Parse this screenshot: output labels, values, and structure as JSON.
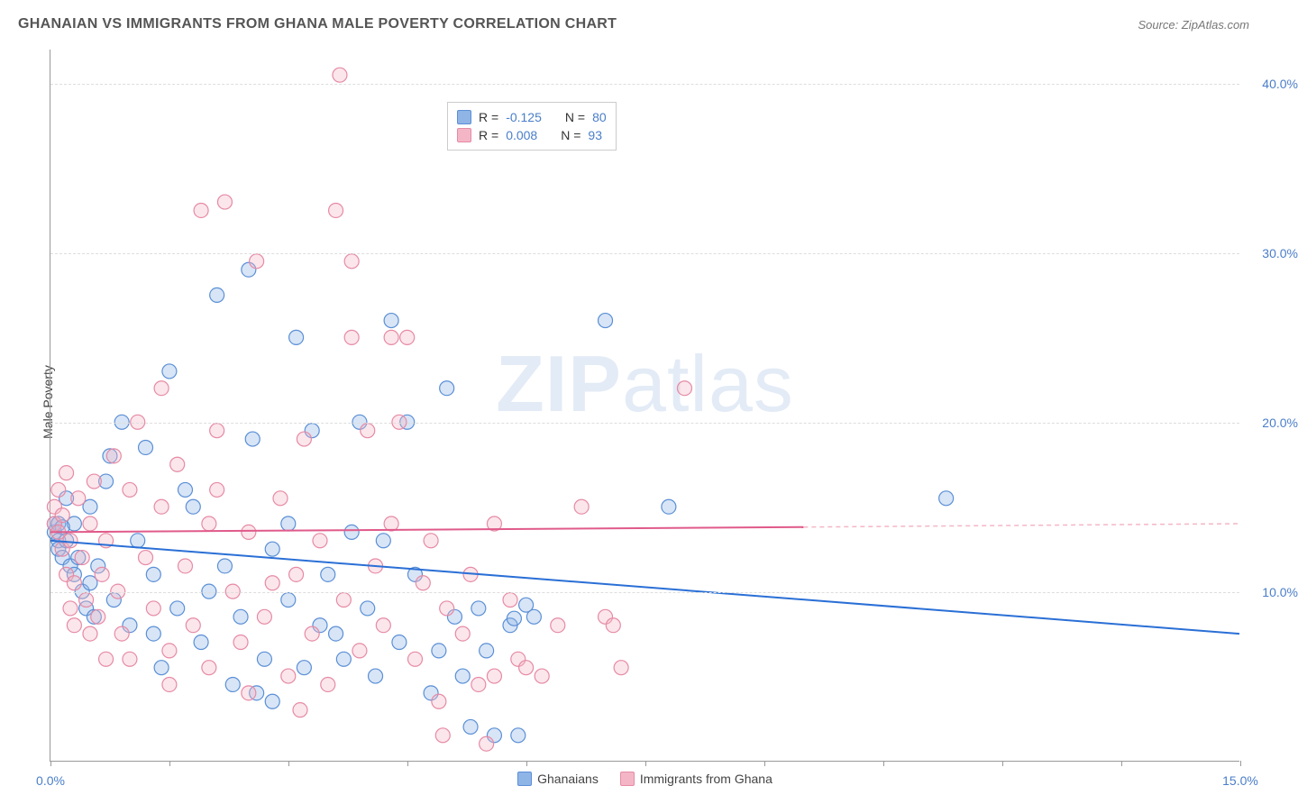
{
  "title": "GHANAIAN VS IMMIGRANTS FROM GHANA MALE POVERTY CORRELATION CHART",
  "source": "Source: ZipAtlas.com",
  "watermark_parts": {
    "a": "ZIP",
    "b": "atlas"
  },
  "y_axis_title": "Male Poverty",
  "chart": {
    "type": "scatter",
    "xlim": [
      0,
      15
    ],
    "ylim": [
      0,
      42
    ],
    "x_ticks": [
      0,
      1.5,
      3,
      4.5,
      6,
      7.5,
      9,
      10.5,
      12,
      13.5,
      15
    ],
    "x_tick_labels_shown": {
      "0": "0.0%",
      "15": "15.0%"
    },
    "y_ticks": [
      10,
      20,
      30,
      40
    ],
    "y_tick_labels": [
      "10.0%",
      "20.0%",
      "30.0%",
      "40.0%"
    ],
    "grid_color": "#dddddd",
    "background_color": "#ffffff",
    "border_color": "#999999",
    "marker_radius": 8,
    "marker_stroke_width": 1.2,
    "marker_fill_opacity": 0.35,
    "series": [
      {
        "name": "Ghanaians",
        "color_fill": "#8fb4e6",
        "color_stroke": "#5a8fd6",
        "legend_swatch": "#8fb4e6",
        "correlation_R": "-0.125",
        "correlation_N": "80",
        "trend_line": {
          "x1": 0,
          "y1": 13.0,
          "x2": 15,
          "y2": 7.5,
          "color": "#2a6fd6",
          "width": 2
        },
        "points": [
          [
            0.05,
            13.5
          ],
          [
            0.05,
            14.0
          ],
          [
            0.1,
            13.0
          ],
          [
            0.1,
            14.0
          ],
          [
            0.1,
            12.5
          ],
          [
            0.15,
            12.0
          ],
          [
            0.2,
            13.0
          ],
          [
            0.2,
            15.5
          ],
          [
            0.25,
            11.5
          ],
          [
            0.3,
            11.0
          ],
          [
            0.3,
            14.0
          ],
          [
            0.35,
            12.0
          ],
          [
            0.4,
            10.0
          ],
          [
            0.45,
            9.0
          ],
          [
            0.5,
            15.0
          ],
          [
            0.5,
            10.5
          ],
          [
            0.55,
            8.5
          ],
          [
            0.6,
            11.5
          ],
          [
            0.7,
            16.5
          ],
          [
            0.75,
            18.0
          ],
          [
            0.8,
            9.5
          ],
          [
            0.9,
            20.0
          ],
          [
            1.0,
            8.0
          ],
          [
            1.1,
            13.0
          ],
          [
            1.2,
            18.5
          ],
          [
            1.3,
            11.0
          ],
          [
            1.3,
            7.5
          ],
          [
            1.5,
            23.0
          ],
          [
            1.6,
            9.0
          ],
          [
            1.7,
            16.0
          ],
          [
            1.8,
            15.0
          ],
          [
            1.9,
            7.0
          ],
          [
            2.0,
            10.0
          ],
          [
            2.1,
            27.5
          ],
          [
            2.2,
            11.5
          ],
          [
            2.3,
            4.5
          ],
          [
            2.4,
            8.5
          ],
          [
            2.5,
            29.0
          ],
          [
            2.55,
            19.0
          ],
          [
            2.7,
            6.0
          ],
          [
            2.8,
            12.5
          ],
          [
            2.8,
            3.5
          ],
          [
            3.0,
            14.0
          ],
          [
            3.0,
            9.5
          ],
          [
            3.1,
            25.0
          ],
          [
            3.2,
            5.5
          ],
          [
            3.3,
            19.5
          ],
          [
            3.4,
            8.0
          ],
          [
            3.5,
            11.0
          ],
          [
            3.6,
            7.5
          ],
          [
            3.8,
            13.5
          ],
          [
            3.9,
            20.0
          ],
          [
            4.0,
            9.0
          ],
          [
            4.1,
            5.0
          ],
          [
            4.2,
            13.0
          ],
          [
            4.3,
            26.0
          ],
          [
            4.4,
            7.0
          ],
          [
            4.5,
            20.0
          ],
          [
            4.6,
            11.0
          ],
          [
            4.8,
            4.0
          ],
          [
            5.0,
            22.0
          ],
          [
            5.1,
            8.5
          ],
          [
            5.3,
            2.0
          ],
          [
            5.4,
            9.0
          ],
          [
            5.5,
            6.5
          ],
          [
            5.6,
            1.5
          ],
          [
            5.8,
            8.0
          ],
          [
            5.85,
            8.4
          ],
          [
            5.9,
            1.5
          ],
          [
            6.0,
            9.2
          ],
          [
            6.1,
            8.5
          ],
          [
            7.0,
            26.0
          ],
          [
            7.8,
            15.0
          ],
          [
            11.3,
            15.5
          ],
          [
            5.2,
            5.0
          ],
          [
            4.9,
            6.5
          ],
          [
            3.7,
            6.0
          ],
          [
            2.6,
            4.0
          ],
          [
            1.4,
            5.5
          ],
          [
            0.15,
            13.8
          ]
        ]
      },
      {
        "name": "Immigrants from Ghana",
        "color_fill": "#f4b6c6",
        "color_stroke": "#e68aa5",
        "legend_swatch": "#f4b6c6",
        "correlation_R": "0.008",
        "correlation_N": "93",
        "trend_line_solid": {
          "x1": 0,
          "y1": 13.5,
          "x2": 9.5,
          "y2": 13.8,
          "color": "#e05a8a",
          "width": 2
        },
        "trend_line_dashed": {
          "x1": 9.5,
          "y1": 13.8,
          "x2": 15,
          "y2": 14.0,
          "color": "#f4b6c6",
          "width": 1.5,
          "dash": "5,4"
        },
        "points": [
          [
            0.05,
            14.0
          ],
          [
            0.05,
            15.0
          ],
          [
            0.1,
            13.5
          ],
          [
            0.1,
            16.0
          ],
          [
            0.15,
            12.5
          ],
          [
            0.15,
            14.5
          ],
          [
            0.2,
            11.0
          ],
          [
            0.2,
            17.0
          ],
          [
            0.25,
            13.0
          ],
          [
            0.3,
            10.5
          ],
          [
            0.35,
            15.5
          ],
          [
            0.4,
            12.0
          ],
          [
            0.45,
            9.5
          ],
          [
            0.5,
            14.0
          ],
          [
            0.55,
            16.5
          ],
          [
            0.6,
            8.5
          ],
          [
            0.65,
            11.0
          ],
          [
            0.7,
            13.0
          ],
          [
            0.8,
            18.0
          ],
          [
            0.85,
            10.0
          ],
          [
            0.9,
            7.5
          ],
          [
            1.0,
            16.0
          ],
          [
            1.1,
            20.0
          ],
          [
            1.2,
            12.0
          ],
          [
            1.3,
            9.0
          ],
          [
            1.4,
            15.0
          ],
          [
            1.4,
            22.0
          ],
          [
            1.5,
            6.5
          ],
          [
            1.6,
            17.5
          ],
          [
            1.7,
            11.5
          ],
          [
            1.8,
            8.0
          ],
          [
            1.9,
            32.5
          ],
          [
            2.0,
            14.0
          ],
          [
            2.0,
            5.5
          ],
          [
            2.1,
            16.0
          ],
          [
            2.1,
            19.5
          ],
          [
            2.2,
            33.0
          ],
          [
            2.3,
            10.0
          ],
          [
            2.4,
            7.0
          ],
          [
            2.5,
            13.5
          ],
          [
            2.6,
            29.5
          ],
          [
            2.7,
            8.5
          ],
          [
            2.8,
            10.5
          ],
          [
            2.9,
            15.5
          ],
          [
            3.0,
            5.0
          ],
          [
            3.1,
            11.0
          ],
          [
            3.2,
            19.0
          ],
          [
            3.3,
            7.5
          ],
          [
            3.4,
            13.0
          ],
          [
            3.5,
            4.5
          ],
          [
            3.6,
            32.5
          ],
          [
            3.65,
            40.5
          ],
          [
            3.7,
            9.5
          ],
          [
            3.8,
            25.0
          ],
          [
            3.8,
            29.5
          ],
          [
            3.9,
            6.5
          ],
          [
            4.0,
            19.5
          ],
          [
            4.1,
            11.5
          ],
          [
            4.2,
            8.0
          ],
          [
            4.3,
            14.0
          ],
          [
            4.3,
            25.0
          ],
          [
            4.4,
            20.0
          ],
          [
            4.5,
            25.0
          ],
          [
            4.6,
            6.0
          ],
          [
            4.7,
            10.5
          ],
          [
            4.8,
            13.0
          ],
          [
            4.9,
            3.5
          ],
          [
            5.0,
            9.0
          ],
          [
            5.2,
            7.5
          ],
          [
            5.3,
            11.0
          ],
          [
            5.4,
            4.5
          ],
          [
            5.5,
            1.0
          ],
          [
            5.6,
            14.0
          ],
          [
            5.6,
            5.0
          ],
          [
            5.8,
            9.5
          ],
          [
            5.9,
            6.0
          ],
          [
            6.0,
            5.5
          ],
          [
            6.2,
            5.0
          ],
          [
            6.4,
            8.0
          ],
          [
            6.7,
            15.0
          ],
          [
            7.0,
            8.5
          ],
          [
            7.1,
            8.0
          ],
          [
            7.2,
            5.5
          ],
          [
            8.0,
            22.0
          ],
          [
            2.5,
            4.0
          ],
          [
            1.5,
            4.5
          ],
          [
            1.0,
            6.0
          ],
          [
            0.7,
            6.0
          ],
          [
            0.5,
            7.5
          ],
          [
            0.3,
            8.0
          ],
          [
            0.25,
            9.0
          ],
          [
            3.15,
            3.0
          ],
          [
            4.95,
            1.5
          ]
        ]
      }
    ]
  },
  "legend_top": {
    "label_R": "R =",
    "label_N": "N ="
  },
  "legend_bottom": {
    "items": [
      {
        "label": "Ghanaians",
        "swatch": "#8fb4e6",
        "stroke": "#5a8fd6"
      },
      {
        "label": "Immigrants from Ghana",
        "swatch": "#f4b6c6",
        "stroke": "#e68aa5"
      }
    ]
  }
}
